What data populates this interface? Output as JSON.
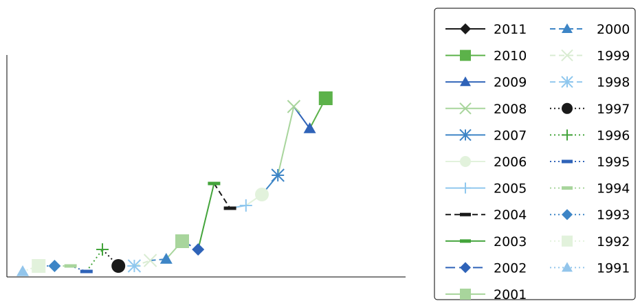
{
  "chart_data": {
    "type": "line",
    "title": "",
    "xlabel": "",
    "ylabel": "",
    "grid": false,
    "legend_position": "right",
    "series": [
      {
        "name": "1991",
        "color": "#92c5eb",
        "marker": "triangle",
        "dash": "dot",
        "x": 1991,
        "y": 0.0
      },
      {
        "name": "1992",
        "color": "#e2f2dc",
        "marker": "square",
        "dash": "dot",
        "x": 1992,
        "y": 2.0
      },
      {
        "name": "1993",
        "color": "#3d85c6",
        "marker": "diamond",
        "dash": "dot",
        "x": 1993,
        "y": 2.0
      },
      {
        "name": "1994",
        "color": "#a8d59c",
        "marker": "dash",
        "dash": "dot",
        "x": 1994,
        "y": 2.0
      },
      {
        "name": "1995",
        "color": "#2f63b8",
        "marker": "dash",
        "dash": "dot",
        "x": 1995,
        "y": 0.0
      },
      {
        "name": "1996",
        "color": "#43a43b",
        "marker": "plus",
        "dash": "dot",
        "x": 1996,
        "y": 8.0
      },
      {
        "name": "1997",
        "color": "#1a1a1a",
        "marker": "circle",
        "dash": "dot",
        "x": 1997,
        "y": 2.0
      },
      {
        "name": "1998",
        "color": "#8fc7ee",
        "marker": "asterisk",
        "dash": "dash",
        "x": 1998,
        "y": 2.0
      },
      {
        "name": "1999",
        "color": "#d9ecd2",
        "marker": "x",
        "dash": "dash",
        "x": 1999,
        "y": 4.0
      },
      {
        "name": "2000",
        "color": "#3d85c6",
        "marker": "triangle",
        "dash": "dash",
        "x": 2000,
        "y": 4.5
      },
      {
        "name": "2001",
        "color": "#a8d59c",
        "marker": "square",
        "dash": "solid",
        "x": 2001,
        "y": 11.0
      },
      {
        "name": "2002",
        "color": "#2f63b8",
        "marker": "diamond",
        "dash": "longdash",
        "x": 2002,
        "y": 8.0
      },
      {
        "name": "2003",
        "color": "#43a43b",
        "marker": "dash",
        "dash": "solid",
        "x": 2003,
        "y": 32.0
      },
      {
        "name": "2004",
        "color": "#1a1a1a",
        "marker": "dash",
        "dash": "dash",
        "x": 2004,
        "y": 23.0
      },
      {
        "name": "2005",
        "color": "#8fc7ee",
        "marker": "plus",
        "dash": "solid",
        "x": 2005,
        "y": 24.0
      },
      {
        "name": "2006",
        "color": "#e2f2dc",
        "marker": "circle",
        "dash": "solid",
        "x": 2006,
        "y": 28.0
      },
      {
        "name": "2007",
        "color": "#3d85c6",
        "marker": "asterisk",
        "dash": "solid",
        "x": 2007,
        "y": 35.0
      },
      {
        "name": "2008",
        "color": "#a8d59c",
        "marker": "x",
        "dash": "solid",
        "x": 2008,
        "y": 60.0
      },
      {
        "name": "2009",
        "color": "#2f63b8",
        "marker": "triangle",
        "dash": "solid",
        "x": 2009,
        "y": 52.0
      },
      {
        "name": "2010",
        "color": "#5cb24a",
        "marker": "square",
        "dash": "solid",
        "x": 2010,
        "y": 63.0
      },
      {
        "name": "2011",
        "color": "#1a1a1a",
        "marker": "diamond",
        "dash": "solid",
        "x": null,
        "y": null
      }
    ],
    "legend_order": [
      "2011",
      "2010",
      "2009",
      "2008",
      "2007",
      "2006",
      "2005",
      "2004",
      "2003",
      "2002",
      "2001",
      "2000",
      "1999",
      "1998",
      "1997",
      "1996",
      "1995",
      "1994",
      "1993",
      "1992",
      "1991"
    ],
    "ylim": [
      0,
      80
    ],
    "xlim": [
      1991,
      2011
    ]
  }
}
